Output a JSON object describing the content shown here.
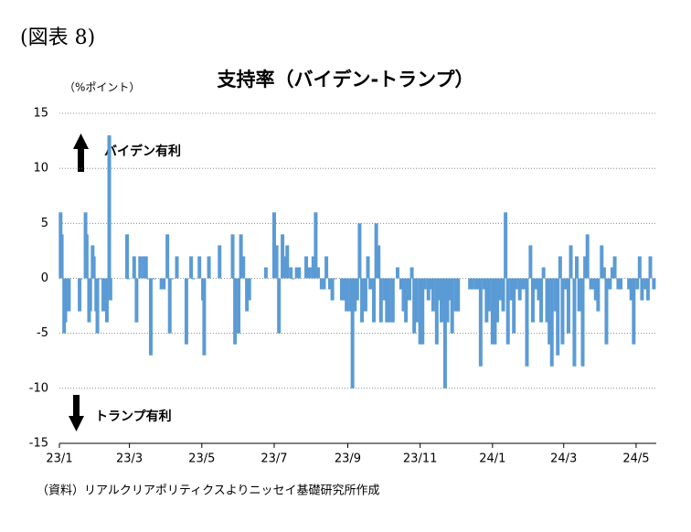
{
  "chart_data": {
    "type": "bar",
    "figure_label": "(図表 8)",
    "title": "支持率（バイデン-トランプ）",
    "y_unit": "（%ポイント）",
    "annotations": [
      "バイデン有利",
      "トランプ有利"
    ],
    "source": "（資料）リアルクリアポリティクスよりニッセイ基礎研究所作成",
    "color": "#5b9bd5",
    "grid": true,
    "xlim": [
      0,
      503
    ],
    "xticks": [
      {
        "value": 0,
        "label": "23/1"
      },
      {
        "value": 59,
        "label": "23/3"
      },
      {
        "value": 120,
        "label": "23/5"
      },
      {
        "value": 181,
        "label": "23/7"
      },
      {
        "value": 243,
        "label": "23/9"
      },
      {
        "value": 304,
        "label": "23/11"
      },
      {
        "value": 365,
        "label": "24/1"
      },
      {
        "value": 425,
        "label": "24/3"
      },
      {
        "value": 486,
        "label": "24/5"
      }
    ],
    "ylim": [
      -15,
      15
    ],
    "yticks": [
      -15,
      -10,
      -5,
      0,
      5,
      10,
      15
    ],
    "x": [
      1,
      2,
      4,
      5,
      7,
      8,
      17,
      18,
      22,
      23,
      25,
      26,
      28,
      29,
      31,
      32,
      34,
      37,
      40,
      42,
      43,
      57,
      58,
      63,
      65,
      68,
      71,
      73,
      75,
      77,
      80,
      86,
      88,
      91,
      93,
      95,
      99,
      107,
      111,
      113,
      118,
      121,
      122,
      126,
      135,
      146,
      148,
      151,
      153,
      155,
      158,
      160,
      174,
      181,
      183,
      185,
      188,
      190,
      192,
      195,
      197,
      200,
      202,
      208,
      211,
      214,
      216,
      218,
      221,
      223,
      225,
      228,
      230,
      232,
      238,
      240,
      242,
      245,
      247,
      249,
      251,
      253,
      255,
      258,
      260,
      262,
      265,
      267,
      269,
      271,
      274,
      276,
      278,
      281,
      285,
      288,
      290,
      292,
      295,
      297,
      299,
      301,
      304,
      306,
      308,
      311,
      313,
      315,
      318,
      320,
      322,
      325,
      327,
      329,
      331,
      334,
      336,
      346,
      348,
      351,
      353,
      355,
      358,
      360,
      362,
      365,
      367,
      369,
      371,
      374,
      376,
      378,
      381,
      383,
      385,
      388,
      390,
      392,
      394,
      397,
      399,
      401,
      404,
      406,
      408,
      411,
      413,
      415,
      418,
      420,
      422,
      424,
      427,
      429,
      431,
      434,
      436,
      438,
      441,
      443,
      445,
      448,
      450,
      452,
      454,
      457,
      459,
      461,
      464,
      466,
      468,
      471,
      473,
      480,
      482,
      484,
      487,
      489,
      491,
      494,
      496,
      498,
      501
    ],
    "values": [
      6,
      4,
      -5,
      -4,
      0,
      -3,
      -3,
      0,
      6,
      4,
      -4,
      -3,
      3,
      2,
      -3,
      -5,
      0,
      -3,
      -4,
      13,
      -2,
      4,
      0,
      2,
      -4,
      2,
      2,
      2,
      0,
      -7,
      0,
      -1,
      -1,
      4,
      -5,
      0,
      2,
      -6,
      2,
      0,
      2,
      -2,
      -7,
      2,
      3,
      4,
      -6,
      -5,
      4,
      2,
      -3,
      -2,
      1,
      6,
      3,
      -5,
      4,
      2,
      3,
      1,
      0,
      1,
      1,
      2,
      1,
      2,
      6,
      1,
      -1,
      -1,
      2,
      -1,
      -2,
      0,
      -2,
      -2,
      -3,
      -3,
      -10,
      -3,
      -2,
      5,
      -4,
      -3,
      2,
      -1,
      -4,
      5,
      3,
      -4,
      -2,
      -4,
      -4,
      -4,
      1,
      -1,
      -3,
      -4,
      -2,
      1,
      -5,
      -4,
      -6,
      -6,
      -1,
      -2,
      -1,
      -3,
      -6,
      -2,
      -4,
      -10,
      -4,
      -2,
      -5,
      -3,
      -3,
      -1,
      -1,
      -1,
      -1,
      -8,
      -1,
      -4,
      -3,
      -6,
      -6,
      -4,
      -2,
      -3,
      6,
      -6,
      -2,
      -5,
      -1,
      -2,
      -1,
      -1,
      -8,
      3,
      -4,
      -1,
      -2,
      -4,
      1,
      -4,
      -6,
      -8,
      -3,
      -7,
      2,
      -6,
      -1,
      -5,
      3,
      -8,
      2,
      -3,
      -8,
      2,
      4,
      -1,
      -1,
      -2,
      -3,
      3,
      1,
      -6,
      -1,
      1,
      2,
      -1,
      -1,
      -1,
      -2,
      -6,
      -1,
      2,
      -2,
      -1,
      -2,
      2,
      -1
    ]
  }
}
